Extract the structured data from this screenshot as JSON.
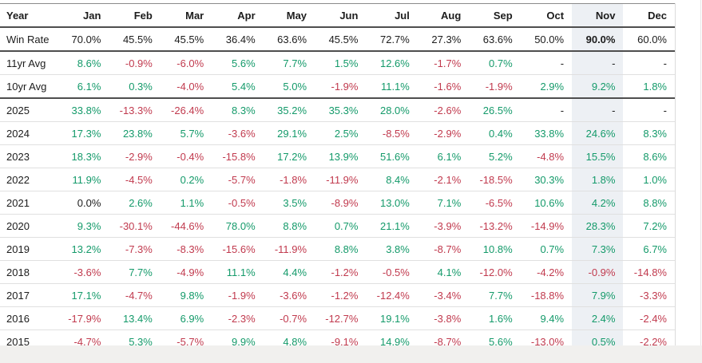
{
  "page": {
    "background": "#ffffff",
    "footer_bar_color": "#f1f0ee"
  },
  "colors": {
    "positive": "#149a6a",
    "negative": "#c13a4e",
    "neutral": "#1c1c1c",
    "highlight_bg": "#edf0f4"
  },
  "table": {
    "columns": [
      "Year",
      "Jan",
      "Feb",
      "Mar",
      "Apr",
      "May",
      "Jun",
      "Jul",
      "Aug",
      "Sep",
      "Oct",
      "Nov",
      "Dec"
    ],
    "highlight_column": "Nov",
    "rows": [
      {
        "label": "Win Rate",
        "style": "neutral",
        "section_end": true,
        "values": [
          "70.0%",
          "45.5%",
          "45.5%",
          "36.4%",
          "63.6%",
          "45.5%",
          "72.7%",
          "27.3%",
          "63.6%",
          "50.0%",
          "90.0%",
          "60.0%"
        ]
      },
      {
        "label": "11yr Avg",
        "style": "signed",
        "section_end": false,
        "values": [
          "8.6%",
          "-0.9%",
          "-6.0%",
          "5.6%",
          "7.7%",
          "1.5%",
          "12.6%",
          "-1.7%",
          "0.7%",
          "-",
          "-",
          "-"
        ]
      },
      {
        "label": "10yr Avg",
        "style": "signed",
        "section_end": true,
        "values": [
          "6.1%",
          "0.3%",
          "-4.0%",
          "5.4%",
          "5.0%",
          "-1.9%",
          "11.1%",
          "-1.6%",
          "-1.9%",
          "2.9%",
          "9.2%",
          "1.8%"
        ]
      },
      {
        "label": "2025",
        "style": "signed",
        "section_end": false,
        "values": [
          "33.8%",
          "-13.3%",
          "-26.4%",
          "8.3%",
          "35.2%",
          "35.3%",
          "28.0%",
          "-2.6%",
          "26.5%",
          "-",
          "-",
          "-"
        ]
      },
      {
        "label": "2024",
        "style": "signed",
        "section_end": false,
        "values": [
          "17.3%",
          "23.8%",
          "5.7%",
          "-3.6%",
          "29.1%",
          "2.5%",
          "-8.5%",
          "-2.9%",
          "0.4%",
          "33.8%",
          "24.6%",
          "8.3%"
        ]
      },
      {
        "label": "2023",
        "style": "signed",
        "section_end": false,
        "values": [
          "18.3%",
          "-2.9%",
          "-0.4%",
          "-15.8%",
          "17.2%",
          "13.9%",
          "51.6%",
          "6.1%",
          "5.2%",
          "-4.8%",
          "15.5%",
          "8.6%"
        ]
      },
      {
        "label": "2022",
        "style": "signed",
        "section_end": false,
        "values": [
          "11.9%",
          "-4.5%",
          "0.2%",
          "-5.7%",
          "-1.8%",
          "-11.9%",
          "8.4%",
          "-2.1%",
          "-18.5%",
          "30.3%",
          "1.8%",
          "1.0%"
        ]
      },
      {
        "label": "2021",
        "style": "signed",
        "section_end": false,
        "values": [
          "0.0%",
          "2.6%",
          "1.1%",
          "-0.5%",
          "3.5%",
          "-8.9%",
          "13.0%",
          "7.1%",
          "-6.5%",
          "10.6%",
          "4.2%",
          "8.8%"
        ]
      },
      {
        "label": "2020",
        "style": "signed",
        "section_end": false,
        "values": [
          "9.3%",
          "-30.1%",
          "-44.6%",
          "78.0%",
          "8.8%",
          "0.7%",
          "21.1%",
          "-3.9%",
          "-13.2%",
          "-14.9%",
          "28.3%",
          "7.2%"
        ]
      },
      {
        "label": "2019",
        "style": "signed",
        "section_end": false,
        "values": [
          "13.2%",
          "-7.3%",
          "-8.3%",
          "-15.6%",
          "-11.9%",
          "8.8%",
          "3.8%",
          "-8.7%",
          "10.8%",
          "0.7%",
          "7.3%",
          "6.7%"
        ]
      },
      {
        "label": "2018",
        "style": "signed",
        "section_end": false,
        "values": [
          "-3.6%",
          "7.7%",
          "-4.9%",
          "11.1%",
          "4.4%",
          "-1.2%",
          "-0.5%",
          "4.1%",
          "-12.0%",
          "-4.2%",
          "-0.9%",
          "-14.8%"
        ]
      },
      {
        "label": "2017",
        "style": "signed",
        "section_end": false,
        "values": [
          "17.1%",
          "-4.7%",
          "9.8%",
          "-1.9%",
          "-3.6%",
          "-1.2%",
          "-12.4%",
          "-3.4%",
          "7.7%",
          "-18.8%",
          "7.9%",
          "-3.3%"
        ]
      },
      {
        "label": "2016",
        "style": "signed",
        "section_end": false,
        "values": [
          "-17.9%",
          "13.4%",
          "6.9%",
          "-2.3%",
          "-0.7%",
          "-12.7%",
          "19.1%",
          "-3.8%",
          "1.6%",
          "9.4%",
          "2.4%",
          "-2.4%"
        ]
      },
      {
        "label": "2015",
        "style": "signed",
        "section_end": false,
        "values": [
          "-4.7%",
          "5.3%",
          "-5.7%",
          "9.9%",
          "4.8%",
          "-9.1%",
          "14.9%",
          "-8.7%",
          "5.6%",
          "-13.0%",
          "0.5%",
          "-2.2%"
        ]
      }
    ]
  }
}
